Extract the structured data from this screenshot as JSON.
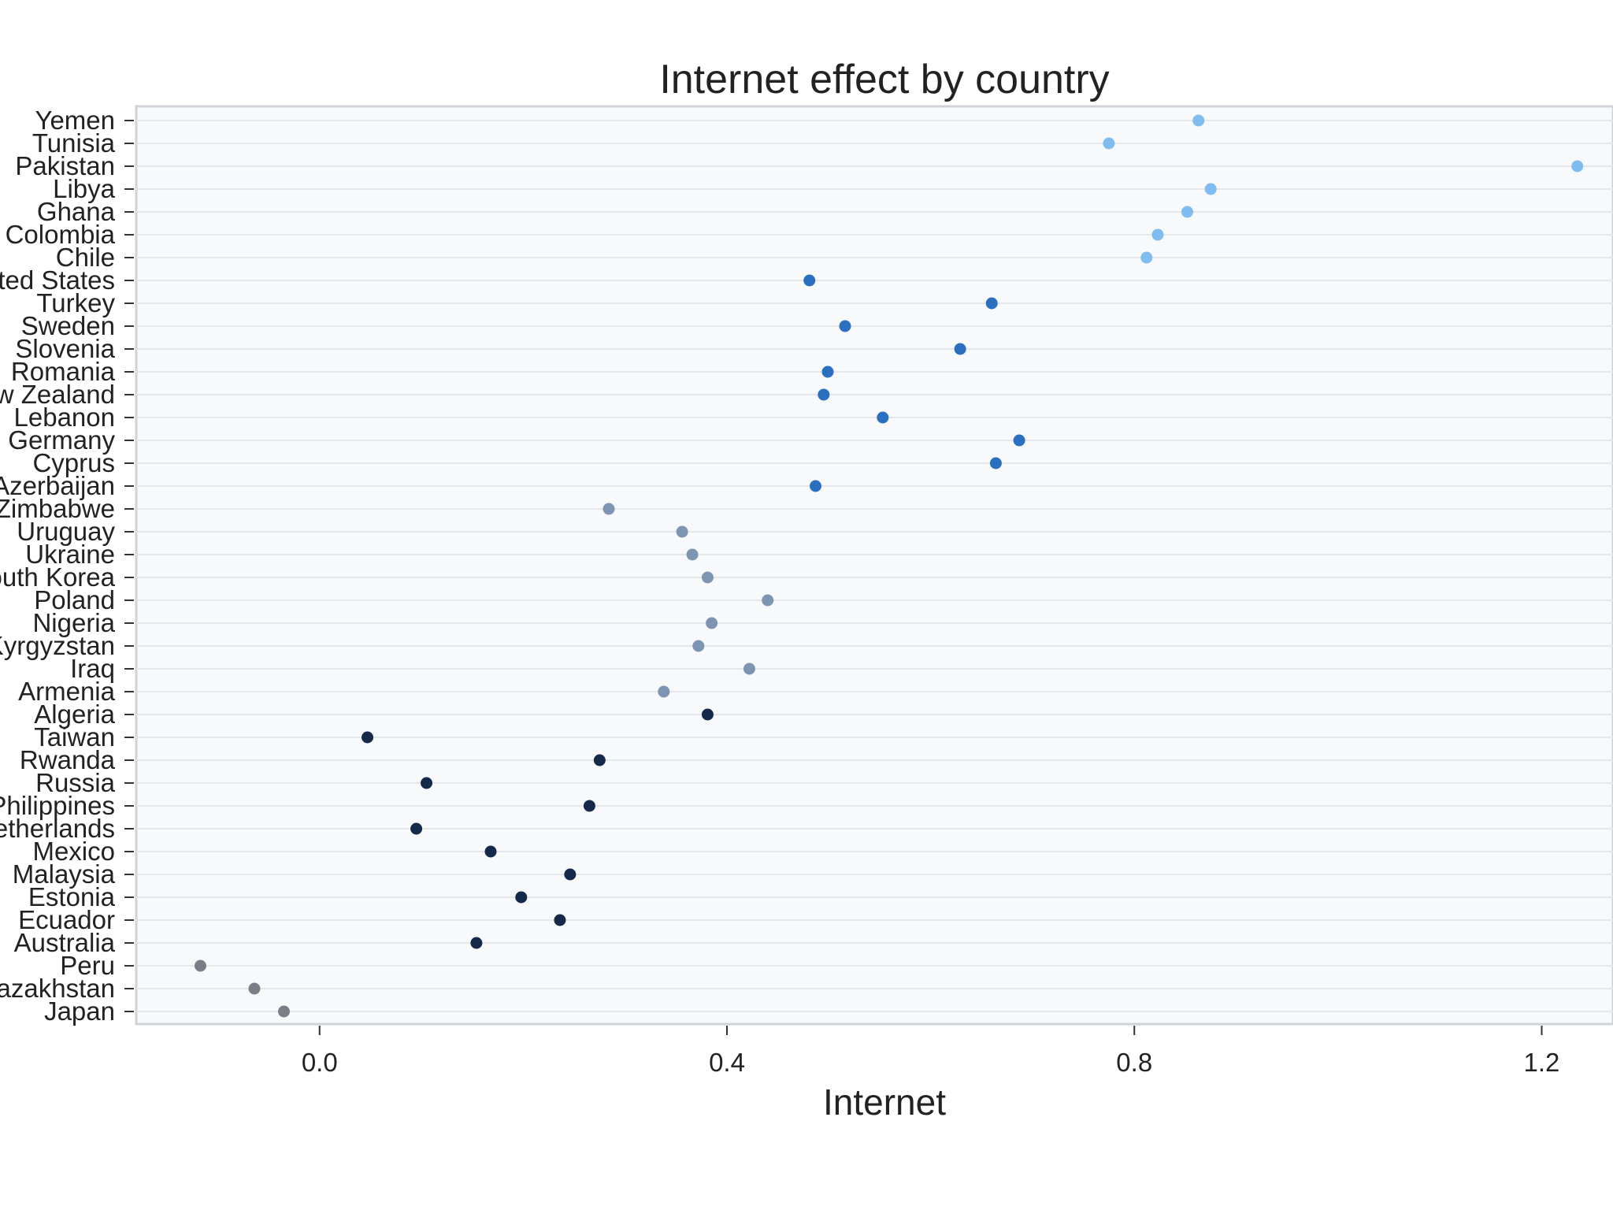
{
  "chart_data": {
    "type": "scatter",
    "title": "Internet effect by country",
    "xlabel": "Internet",
    "ylabel": "",
    "xlim": [
      -0.18,
      1.27
    ],
    "x_ticks": [
      {
        "value": 0.0,
        "label": "0.0"
      },
      {
        "value": 0.4,
        "label": "0.4"
      },
      {
        "value": 0.8,
        "label": "0.8"
      },
      {
        "value": 1.2,
        "label": "1.2"
      }
    ],
    "grid": true,
    "legend": "none",
    "colors": {
      "panel_background": "#f8f9fb",
      "grid": "#e4e6ea",
      "group_light_blue": "#7fbcf0",
      "group_medium_blue": "#2a6fc0",
      "group_gray_blue": "#7d95b3",
      "group_navy": "#15294a",
      "group_gray": "#7a7f87"
    },
    "points": [
      {
        "country": "Yemen",
        "x": 0.863,
        "color": "#7fbcf0"
      },
      {
        "country": "Tunisia",
        "x": 0.775,
        "color": "#7fbcf0"
      },
      {
        "country": "Pakistan",
        "x": 1.235,
        "color": "#7fbcf0"
      },
      {
        "country": "Libya",
        "x": 0.875,
        "color": "#7fbcf0"
      },
      {
        "country": "Ghana",
        "x": 0.852,
        "color": "#7fbcf0"
      },
      {
        "country": "Colombia",
        "x": 0.823,
        "color": "#7fbcf0"
      },
      {
        "country": "Chile",
        "x": 0.812,
        "color": "#7fbcf0"
      },
      {
        "country": "United States",
        "x": 0.481,
        "color": "#2a6fc0"
      },
      {
        "country": "Turkey",
        "x": 0.66,
        "color": "#2a6fc0"
      },
      {
        "country": "Sweden",
        "x": 0.516,
        "color": "#2a6fc0"
      },
      {
        "country": "Slovenia",
        "x": 0.629,
        "color": "#2a6fc0"
      },
      {
        "country": "Romania",
        "x": 0.499,
        "color": "#2a6fc0"
      },
      {
        "country": "New Zealand",
        "x": 0.495,
        "color": "#2a6fc0"
      },
      {
        "country": "Lebanon",
        "x": 0.553,
        "color": "#2a6fc0"
      },
      {
        "country": "Germany",
        "x": 0.687,
        "color": "#2a6fc0"
      },
      {
        "country": "Cyprus",
        "x": 0.664,
        "color": "#2a6fc0"
      },
      {
        "country": "Azerbaijan",
        "x": 0.487,
        "color": "#2a6fc0"
      },
      {
        "country": "Zimbabwe",
        "x": 0.284,
        "color": "#7d95b3"
      },
      {
        "country": "Uruguay",
        "x": 0.356,
        "color": "#7d95b3"
      },
      {
        "country": "Ukraine",
        "x": 0.366,
        "color": "#7d95b3"
      },
      {
        "country": "South Korea",
        "x": 0.381,
        "color": "#7d95b3"
      },
      {
        "country": "Poland",
        "x": 0.44,
        "color": "#7d95b3"
      },
      {
        "country": "Nigeria",
        "x": 0.385,
        "color": "#7d95b3"
      },
      {
        "country": "Kyrgyzstan",
        "x": 0.372,
        "color": "#7d95b3"
      },
      {
        "country": "Iraq",
        "x": 0.422,
        "color": "#7d95b3"
      },
      {
        "country": "Armenia",
        "x": 0.338,
        "color": "#7d95b3"
      },
      {
        "country": "Algeria",
        "x": 0.381,
        "color": "#15294a"
      },
      {
        "country": "Taiwan",
        "x": 0.047,
        "color": "#15294a"
      },
      {
        "country": "Rwanda",
        "x": 0.275,
        "color": "#15294a"
      },
      {
        "country": "Russia",
        "x": 0.105,
        "color": "#15294a"
      },
      {
        "country": "Philippines",
        "x": 0.265,
        "color": "#15294a"
      },
      {
        "country": "Netherlands",
        "x": 0.095,
        "color": "#15294a"
      },
      {
        "country": "Mexico",
        "x": 0.168,
        "color": "#15294a"
      },
      {
        "country": "Malaysia",
        "x": 0.246,
        "color": "#15294a"
      },
      {
        "country": "Estonia",
        "x": 0.198,
        "color": "#15294a"
      },
      {
        "country": "Ecuador",
        "x": 0.236,
        "color": "#15294a"
      },
      {
        "country": "Australia",
        "x": 0.154,
        "color": "#15294a"
      },
      {
        "country": "Peru",
        "x": -0.117,
        "color": "#7a7f87"
      },
      {
        "country": "Kazakhstan",
        "x": -0.064,
        "color": "#7a7f87"
      },
      {
        "country": "Japan",
        "x": -0.035,
        "color": "#7a7f87"
      }
    ]
  }
}
